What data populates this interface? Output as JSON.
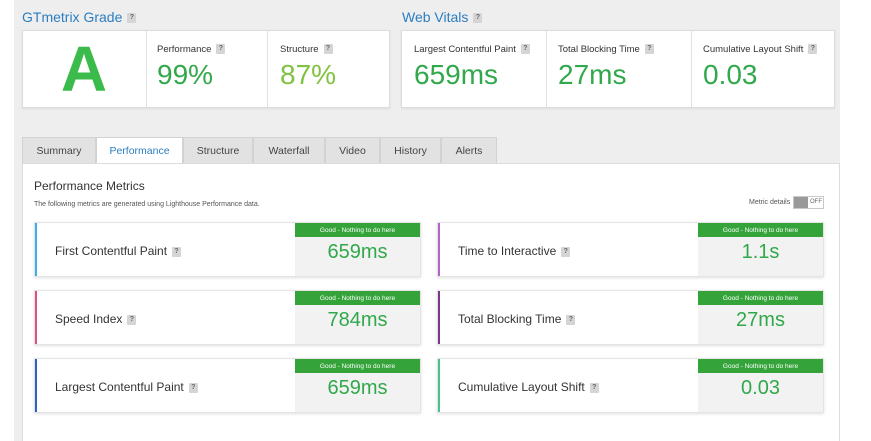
{
  "gtmetrix": {
    "title": "GTmetrix Grade",
    "help": "?",
    "grade": "A",
    "performance_label": "Performance",
    "performance_value": "99%",
    "structure_label": "Structure",
    "structure_value": "87%"
  },
  "web_vitals": {
    "title": "Web Vitals",
    "help": "?",
    "items": [
      {
        "label": "Largest Contentful Paint",
        "value": "659ms"
      },
      {
        "label": "Total Blocking Time",
        "value": "27ms"
      },
      {
        "label": "Cumulative Layout Shift",
        "value": "0.03"
      }
    ]
  },
  "tabs": [
    {
      "label": "Summary"
    },
    {
      "label": "Performance"
    },
    {
      "label": "Structure"
    },
    {
      "label": "Waterfall"
    },
    {
      "label": "Video"
    },
    {
      "label": "History"
    },
    {
      "label": "Alerts"
    }
  ],
  "active_tab": "Performance",
  "performance_metrics": {
    "title": "Performance Metrics",
    "subtitle": "The following metrics are generated using Lighthouse Performance data.",
    "metric_details_label": "Metric details",
    "toggle_state": "OFF",
    "cards": [
      {
        "name": "First Contentful Paint",
        "badge": "Good - Nothing to do here",
        "value": "659ms",
        "color": "#3ab0e8"
      },
      {
        "name": "Time to Interactive",
        "badge": "Good - Nothing to do here",
        "value": "1.1s",
        "color": "#b265c8"
      },
      {
        "name": "Speed Index",
        "badge": "Good - Nothing to do here",
        "value": "784ms",
        "color": "#e04e86"
      },
      {
        "name": "Total Blocking Time",
        "badge": "Good - Nothing to do here",
        "value": "27ms",
        "color": "#7a3a8c"
      },
      {
        "name": "Largest Contentful Paint",
        "badge": "Good - Nothing to do here",
        "value": "659ms",
        "color": "#2f62c6"
      },
      {
        "name": "Cumulative Layout Shift",
        "badge": "Good - Nothing to do here",
        "value": "0.03",
        "color": "#4fc08d"
      }
    ]
  },
  "colors": {
    "accent": "#2b7ec1",
    "good": "#34a43a",
    "value_green": "#31a84a",
    "structure_green": "#80c342"
  }
}
